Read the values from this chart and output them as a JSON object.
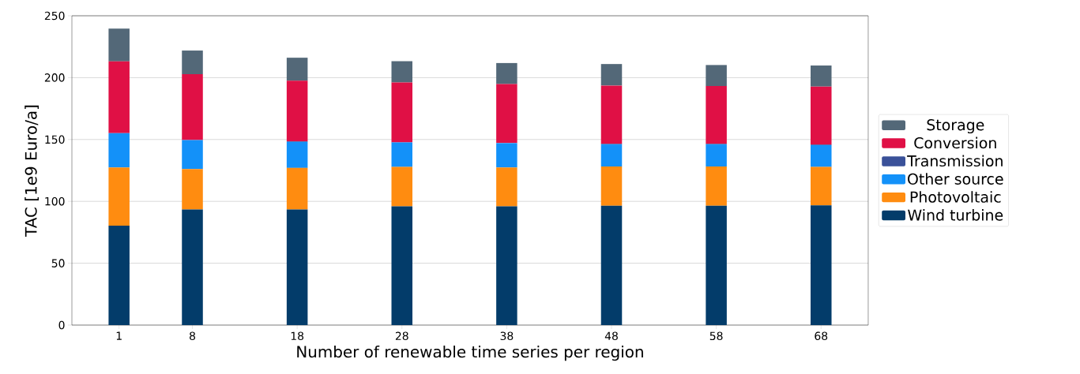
{
  "chart_data": {
    "type": "bar",
    "stacked": true,
    "xlabel": "Number of renewable time series per region",
    "ylabel": "TAC [1e9 Euro/a]",
    "x": [
      1,
      8,
      18,
      28,
      38,
      48,
      58,
      68
    ],
    "xlim": [
      -3.5,
      72.5
    ],
    "xticks": [
      1,
      8,
      18,
      28,
      38,
      48,
      58,
      68
    ],
    "ylim": [
      0,
      250
    ],
    "yticks": [
      0,
      50,
      100,
      150,
      200,
      250
    ],
    "grid": "y",
    "legend": "right",
    "series": [
      {
        "name": "Wind turbine",
        "color": "#033c6a",
        "values": [
          80.3,
          93.4,
          93.4,
          96.0,
          96.0,
          96.4,
          96.4,
          96.8
        ]
      },
      {
        "name": "Photovoltaic",
        "color": "#ff8c10",
        "values": [
          47.1,
          32.7,
          33.6,
          31.8,
          31.4,
          31.8,
          31.8,
          31.0
        ]
      },
      {
        "name": "Other source",
        "color": "#1391f9",
        "values": [
          27.8,
          23.5,
          21.1,
          19.9,
          19.7,
          17.8,
          17.8,
          17.6
        ]
      },
      {
        "name": "Transmission",
        "color": "#3a5199",
        "values": [
          0,
          null,
          0.5,
          null,
          null,
          0.5,
          0.5,
          0.5
        ]
      },
      {
        "name": "Conversion",
        "color": "#e01045",
        "values": [
          58.0,
          53.2,
          48.9,
          48.4,
          47.7,
          47.1,
          46.7,
          46.9
        ]
      },
      {
        "name": "Storage",
        "color": "#536878",
        "values": [
          26.5,
          19.1,
          18.6,
          17.2,
          17.0,
          17.4,
          17.0,
          17.0
        ]
      }
    ]
  }
}
